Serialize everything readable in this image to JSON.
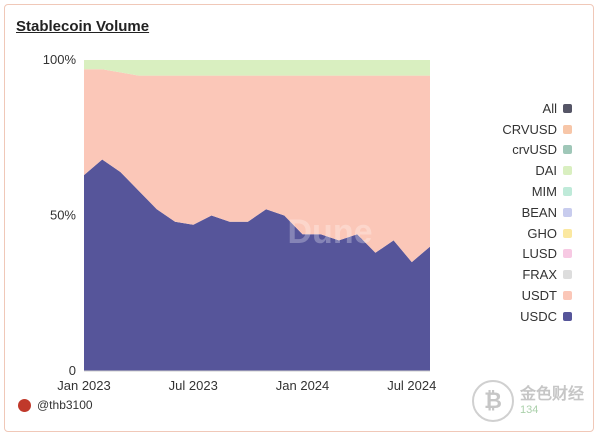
{
  "title": "Stablecoin Volume",
  "user": "@thb3100",
  "watermark": {
    "text1": "Dune",
    "text2": "金色财经",
    "badge_count": "134"
  },
  "chart_data": {
    "type": "area",
    "stacked": "percent",
    "x_ticks": [
      "Jan 2023",
      "Jul 2023",
      "Jan 2024",
      "Jul 2024"
    ],
    "y_ticks": [
      "0",
      "50%",
      "100%"
    ],
    "ylim": [
      0,
      100
    ],
    "legend_position": "right",
    "legend": [
      {
        "name": "All",
        "color": "#555566"
      },
      {
        "name": "CRVUSD",
        "color": "#f7c6a8"
      },
      {
        "name": "crvUSD",
        "color": "#9fc7b8"
      },
      {
        "name": "DAI",
        "color": "#d9efc0"
      },
      {
        "name": "MIM",
        "color": "#bfead9"
      },
      {
        "name": "BEAN",
        "color": "#c8ccee"
      },
      {
        "name": "GHO",
        "color": "#fbe8a0"
      },
      {
        "name": "LUSD",
        "color": "#f7c9e3"
      },
      {
        "name": "FRAX",
        "color": "#dddddd"
      },
      {
        "name": "USDT",
        "color": "#fbc7b8"
      },
      {
        "name": "USDC",
        "color": "#56559a"
      }
    ],
    "x": [
      "2023-01",
      "2023-02",
      "2023-03",
      "2023-04",
      "2023-05",
      "2023-06",
      "2023-07",
      "2023-08",
      "2023-09",
      "2023-10",
      "2023-11",
      "2023-12",
      "2024-01",
      "2024-02",
      "2024-03",
      "2024-04",
      "2024-05",
      "2024-06",
      "2024-07",
      "2024-08"
    ],
    "series": [
      {
        "name": "USDC",
        "color": "#56559a",
        "values": [
          63,
          68,
          64,
          58,
          52,
          48,
          47,
          50,
          48,
          48,
          52,
          50,
          44,
          44,
          42,
          44,
          38,
          42,
          35,
          40
        ]
      },
      {
        "name": "USDT",
        "color": "#fbc7b8",
        "values": [
          34,
          29,
          32,
          37,
          43,
          47,
          48,
          45,
          47,
          47,
          43,
          45,
          51,
          51,
          53,
          51,
          57,
          53,
          60,
          55
        ]
      },
      {
        "name": "DAI",
        "color": "#d9efc0",
        "values": [
          3,
          3,
          4,
          5,
          5,
          5,
          5,
          5,
          5,
          5,
          5,
          5,
          5,
          5,
          5,
          5,
          5,
          5,
          5,
          5
        ]
      }
    ]
  }
}
